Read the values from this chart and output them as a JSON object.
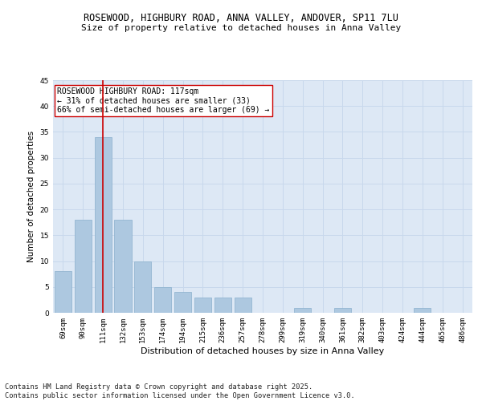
{
  "title": "ROSEWOOD, HIGHBURY ROAD, ANNA VALLEY, ANDOVER, SP11 7LU",
  "subtitle": "Size of property relative to detached houses in Anna Valley",
  "xlabel": "Distribution of detached houses by size in Anna Valley",
  "ylabel": "Number of detached properties",
  "categories": [
    "69sqm",
    "90sqm",
    "111sqm",
    "132sqm",
    "153sqm",
    "174sqm",
    "194sqm",
    "215sqm",
    "236sqm",
    "257sqm",
    "278sqm",
    "299sqm",
    "319sqm",
    "340sqm",
    "361sqm",
    "382sqm",
    "403sqm",
    "424sqm",
    "444sqm",
    "465sqm",
    "486sqm"
  ],
  "values": [
    8,
    18,
    34,
    18,
    10,
    5,
    4,
    3,
    3,
    3,
    0,
    0,
    1,
    0,
    1,
    0,
    0,
    0,
    1,
    0,
    0
  ],
  "bar_color": "#adc8e0",
  "bar_edge_color": "#8ab0cc",
  "grid_color": "#c8d8ec",
  "bg_color": "#dde8f5",
  "vline_x": 2,
  "vline_color": "#cc0000",
  "annotation_text": "ROSEWOOD HIGHBURY ROAD: 117sqm\n← 31% of detached houses are smaller (33)\n66% of semi-detached houses are larger (69) →",
  "annotation_box_color": "#ffffff",
  "annotation_box_edge": "#cc0000",
  "ylim": [
    0,
    45
  ],
  "yticks": [
    0,
    5,
    10,
    15,
    20,
    25,
    30,
    35,
    40,
    45
  ],
  "footer": "Contains HM Land Registry data © Crown copyright and database right 2025.\nContains public sector information licensed under the Open Government Licence v3.0.",
  "title_fontsize": 8.5,
  "subtitle_fontsize": 8,
  "xlabel_fontsize": 8,
  "ylabel_fontsize": 7.5,
  "tick_fontsize": 6.5,
  "annotation_fontsize": 7,
  "footer_fontsize": 6.2
}
